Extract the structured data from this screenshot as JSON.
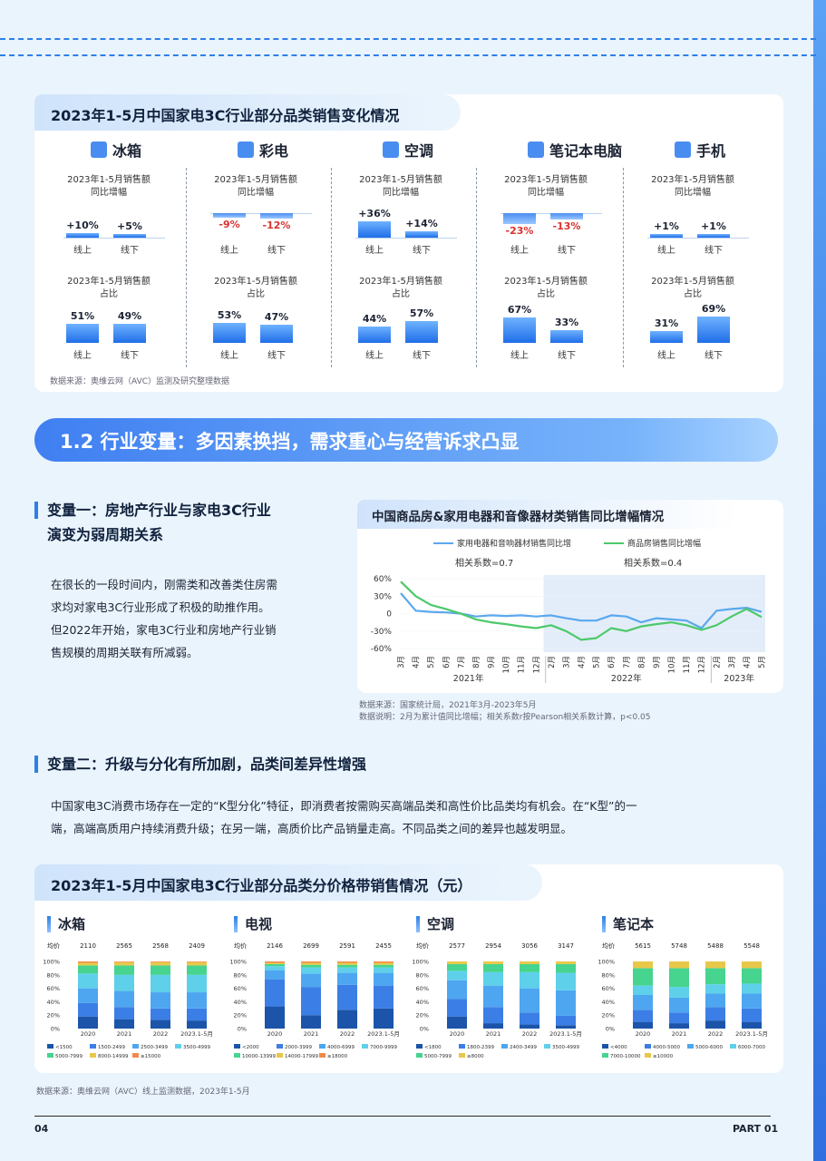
{
  "card1": {
    "title": "2023年1-5月中国家电3C行业部分品类销售变化情况",
    "growth_label": [
      "2023年1-5月销售额",
      "同比增幅"
    ],
    "share_label": [
      "2023年1-5月销售额",
      "占比"
    ],
    "online": "线上",
    "offline": "线下",
    "categories": [
      {
        "name": "冰箱",
        "icon": "fridge-icon",
        "growth": [
          "+10%",
          "+5%"
        ],
        "growth_num": [
          10,
          5
        ],
        "share": [
          "51%",
          "49%"
        ],
        "share_num": [
          51,
          49
        ]
      },
      {
        "name": "彩电",
        "icon": "tv-icon",
        "growth": [
          "-9%",
          "-12%"
        ],
        "growth_num": [
          -9,
          -12
        ],
        "share": [
          "53%",
          "47%"
        ],
        "share_num": [
          53,
          47
        ]
      },
      {
        "name": "空调",
        "icon": "air-conditioner-icon",
        "growth": [
          "+36%",
          "+14%"
        ],
        "growth_num": [
          36,
          14
        ],
        "share": [
          "44%",
          "57%"
        ],
        "share_num": [
          44,
          57
        ]
      },
      {
        "name": "笔记本电脑",
        "icon": "laptop-icon",
        "growth": [
          "-23%",
          "-13%"
        ],
        "growth_num": [
          -23,
          -13
        ],
        "share": [
          "67%",
          "33%"
        ],
        "share_num": [
          67,
          33
        ]
      },
      {
        "name": "手机",
        "icon": "phone-icon",
        "growth": [
          "+1%",
          "+1%"
        ],
        "growth_num": [
          1,
          1
        ],
        "share": [
          "31%",
          "69%"
        ],
        "share_num": [
          31,
          69
        ]
      }
    ],
    "source": "数据来源：奥维云网（AVC）监测及研究整理数据"
  },
  "section": {
    "title": "1.2 行业变量：多因素换挡，需求重心与经营诉求凸显"
  },
  "var1": {
    "title": [
      "变量一：房地产行业与家电3C行业",
      "演变为弱周期关系"
    ],
    "body": [
      "在很长的一段时间内，刚需类和改善类住房需",
      "求均对家电3C行业形成了积极的助推作用。",
      "但2022年开始，家电3C行业和房地产行业销",
      "售规模的周期关联有所减弱。"
    ]
  },
  "line_chart": {
    "title": "中国商品房&家用电器和音像器材类销售同比增幅情况",
    "source": "数据来源：国家统计局，2021年3月-2023年5月",
    "note": "数据说明：2月为累计值同比增幅；相关系数r按Pearson相关系数计算，p<0.05"
  },
  "var2": {
    "title": "变量二：升级与分化有所加剧，品类间差异性增强",
    "body": [
      "中国家电3C消费市场存在一定的“K型分化”特征，即消费者按需购买高端品类和高性价比品类均有机会。在“K型”的一",
      "端，高端高质用户持续消费升级；在另一端，高质价比产品销量走高。不同品类之间的差异也越发明显。"
    ]
  },
  "card2": {
    "title": "2023年1-5月中国家电3C行业部分品类分价格带销售情况（元）",
    "avg_label": "均价",
    "years": [
      "2020",
      "2021",
      "2022",
      "2023.1-5月"
    ],
    "y_ticks": [
      "100%",
      "80%",
      "60%",
      "40%",
      "20%",
      "0%"
    ],
    "panels": [
      {
        "name": "冰箱",
        "avg": [
          "2110",
          "2565",
          "2568",
          "2409"
        ],
        "legend": [
          "<1500",
          "1500-2499",
          "2500-3499",
          "3500-4999",
          "5000-7999",
          "8000-14999",
          "≥15000"
        ],
        "colors": [
          "#1b54a8",
          "#3b7ee6",
          "#4ea6f0",
          "#5fd0ea",
          "#46d48f",
          "#e8c84a",
          "#f08a4b"
        ],
        "data": [
          [
            18,
            20,
            22,
            22,
            12,
            4,
            2
          ],
          [
            14,
            18,
            24,
            24,
            14,
            5,
            1
          ],
          [
            13,
            17,
            24,
            26,
            14,
            5,
            1
          ],
          [
            12,
            18,
            24,
            26,
            14,
            5,
            1
          ]
        ]
      },
      {
        "name": "电视",
        "avg": [
          "2146",
          "2699",
          "2591",
          "2455"
        ],
        "legend": [
          "<2000",
          "2000-3999",
          "4000-6999",
          "7000-9999",
          "10000-13999",
          "14000-17999",
          "≥18000"
        ],
        "colors": [
          "#1b54a8",
          "#3b7ee6",
          "#4ea6f0",
          "#5fd0ea",
          "#46d48f",
          "#e8c84a",
          "#f08a4b"
        ],
        "data": [
          [
            33,
            40,
            14,
            6,
            3,
            2,
            2
          ],
          [
            20,
            42,
            20,
            9,
            4,
            3,
            2
          ],
          [
            28,
            37,
            18,
            8,
            4,
            3,
            2
          ],
          [
            30,
            34,
            19,
            8,
            4,
            3,
            2
          ]
        ]
      },
      {
        "name": "空调",
        "avg": [
          "2577",
          "2954",
          "3056",
          "3147"
        ],
        "legend": [
          "<1800",
          "1800-2399",
          "2400-3499",
          "3500-4999",
          "5000-7999",
          "≥8000"
        ],
        "colors": [
          "#1b54a8",
          "#3b7ee6",
          "#4ea6f0",
          "#5fd0ea",
          "#46d48f",
          "#e8c84a"
        ],
        "data": [
          [
            18,
            26,
            28,
            14,
            10,
            4
          ],
          [
            8,
            24,
            32,
            20,
            12,
            4
          ],
          [
            6,
            18,
            36,
            24,
            12,
            4
          ],
          [
            5,
            14,
            38,
            26,
            13,
            4
          ]
        ]
      },
      {
        "name": "笔记本",
        "avg": [
          "5615",
          "5748",
          "5488",
          "5548"
        ],
        "legend": [
          "<4000",
          "4000-5000",
          "5000-6000",
          "6000-7000",
          "7000-10000",
          "≥10000"
        ],
        "colors": [
          "#1b54a8",
          "#3b7ee6",
          "#4ea6f0",
          "#5fd0ea",
          "#46d48f",
          "#e8c84a"
        ],
        "data": [
          [
            10,
            18,
            22,
            14,
            26,
            10
          ],
          [
            8,
            16,
            22,
            16,
            28,
            10
          ],
          [
            12,
            20,
            20,
            14,
            24,
            10
          ],
          [
            10,
            20,
            22,
            15,
            23,
            10
          ]
        ]
      }
    ],
    "source": "数据来源：奥维云网（AVC）线上监测数据，2023年1-5月"
  },
  "footer": {
    "page": "04",
    "part": "PART 01"
  },
  "chart_data": [
    {
      "type": "line",
      "title": "中国商品房&家用电器和音像器材类销售同比增幅情况",
      "x": [
        "3月",
        "4月",
        "5月",
        "6月",
        "7月",
        "8月",
        "9月",
        "10月",
        "11月",
        "12月",
        "2月",
        "3月",
        "4月",
        "5月",
        "6月",
        "7月",
        "8月",
        "9月",
        "10月",
        "11月",
        "12月",
        "2月",
        "3月",
        "4月",
        "5月"
      ],
      "x_groups": [
        "2021年",
        "2022年",
        "2023年"
      ],
      "y_ticks": [
        "60%",
        "30%",
        "0",
        "-30%",
        "-60%"
      ],
      "ylim": [
        -60,
        60
      ],
      "series": [
        {
          "name": "家用电器和音响器材销售同比增",
          "color": "#5aa8ec",
          "annotation": "相关系数=0.7",
          "values": [
            35,
            5,
            3,
            2,
            0,
            -5,
            -3,
            -4,
            -3,
            -5,
            -3,
            -8,
            -12,
            -12,
            -3,
            -5,
            -15,
            -8,
            -10,
            -12,
            -25,
            5,
            8,
            10,
            3
          ]
        },
        {
          "name": "商品房销售同比增幅",
          "color": "#4cc96a",
          "annotation": "相关系数=0.4",
          "values": [
            55,
            30,
            15,
            8,
            0,
            -10,
            -15,
            -18,
            -22,
            -25,
            -20,
            -30,
            -45,
            -42,
            -25,
            -30,
            -22,
            -18,
            -15,
            -20,
            -28,
            -20,
            -5,
            8,
            -6
          ]
        }
      ]
    }
  ]
}
